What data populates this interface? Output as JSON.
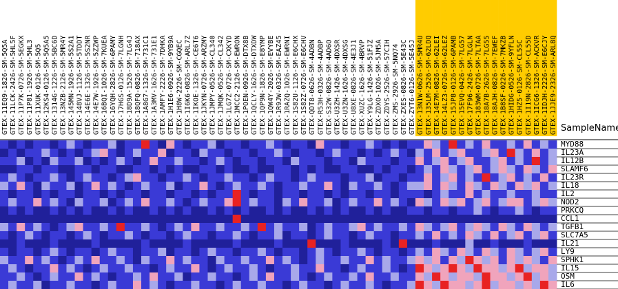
{
  "chart_data": {
    "type": "heatmap",
    "x_label": "SampleName",
    "columns": [
      "GTEX-11EQ9-1826-SM-5Q5A",
      "GTEX-11LCK-2426-SM-5HL5F",
      "GTEX-11P7K-0726-SM-5EGKX",
      "GTEX-11P81-1926-SM-5HL3",
      "GTEX-11XUK-0126-SM-5Q5",
      "GTEX-12KS4-0126-SM-5Q5A5",
      "GTEX-1314G-1226-SM-5BC6D",
      "GTEX-13NZB-2126-SM-5MR4Y",
      "GTEX-145MN-1926-SM-5S2A1",
      "GTEX-148VJ-1126-SM-5TDDT",
      "GTEX-14E6E-1326-SM-5S2NR",
      "GTEX-14E7W-1926-SM-5ZZWP",
      "GTEX-16BQI-1026-SM-7KUEA",
      "GTEX-16YQH-2826-SM-6PAMY",
      "GTEX-17HGS-0126-SM-7LGNH",
      "GTEX-18D9A-1526-SM-7LG4J",
      "GTEX-18QFQ-0826-SM-718AX",
      "GTEX-1A8G7-1326-SM-731C1",
      "GTEX-1A3MV-1626-SM-731E1",
      "GTEX-1AMFY-2226-SM-7DHKA",
      "GTEX-1H1E6-0926-SM-9YB9A",
      "GTEX-1H8W-2226-SM-CGQEC",
      "GTEX-1I6K6-0826-SM-ARL7Z",
      "GTEX-1IKOE-1326-SM-CE6T6",
      "GTEX-1JKYN-0726-SM-ARZMY",
      "GTEX-1JMPY-0526-SM-CL340",
      "GTEX-1JMQK-0526-SM-CL342",
      "GTEX-1LG7Z-0726-SM-CXKYD",
      "GTEX-1MCC2-2126-SM-EWRON",
      "GTEX-1POEN-0926-SM-DTX8B",
      "GTEX-1QCLY-1626-SM-DTXDW",
      "GTEX-1QP9N-1826-SM-E8YMP",
      "GTEX-1QW4Y-2026-SM-EVYBE",
      "GTEX-1R9JW-0326-SM-EAZ45",
      "GTEX-1RAZQ-1026-SM-EWRNI",
      "GTEX-1S82U-1126-SM-E6CHX",
      "GTEX-1S82Z-0726-SM-E6CHV",
      "GTEX-QDT8-0626-SM-4ADBN",
      "GTEX-R53H-0326-SM-4ADBP",
      "GTEX-S32W-0826-SM-4AD6O",
      "GTEX-U3ZH-1426-SM-4DXSR",
      "GTEX-U3ZN-1626-SM-4DXSG",
      "GTEX-U8XE-0826-SM-4E3J1",
      "GTEX-XUZC-1626-SM-4BRVP",
      "GTEX-Y9LG-1426-SM-51FJZ",
      "GTEX-ZDXO-1026-SM-5JM5A",
      "GTEX-ZDYS-2526-SM-57CIH",
      "GTEX-ZMS-2926-SM-5NQ74",
      "GTEX-ZXES-0826-SM-5E43C",
      "GTEX-ZYT6-0126-SM-5E45J",
      "GTEX-13N1W-0626-SM-5MR4U",
      "GTEX-135LM-2526-SM-62LDQ",
      "GTEX-14E7M-0826-SM-62LEI",
      "GTEX-14LZ3-0726-SM-62LEZ",
      "GTEX-15JP8-0126-SM-6PAMB",
      "GTEX-15EVQ-0426-SM-7LG57",
      "GTEX-17F96-2426-SM-7LGLN",
      "GTEX-183WM-0726-SM-7LTAA",
      "GTEX-18A7B-2626-SM-7LG55",
      "GTEX-18AJH-0826-SM-7EWEF",
      "GTEX-1B8SF-0226-SM-7MKZB",
      "GTEX-1HIDG-0526-SM-9YFLN",
      "GTEX-1HZ5-0126-SM-CL55C",
      "GTEX-1I19N-2826-SM-CL55D",
      "GTEX-1ICG6-1326-SM-ACKVR",
      "GTEX-1IDJH-2226-SM-E6CJY",
      "GTEX-1JJE9-2326-SM-ARL8Q"
    ],
    "highlight_columns": [
      50,
      51,
      52,
      53,
      54,
      55,
      56,
      57,
      58,
      59,
      60,
      61,
      62,
      63,
      64,
      65,
      66
    ],
    "highlight_color": "#ffcc00",
    "rows": [
      "MYD88",
      "IL23A",
      "IL12B",
      "SLAMF6",
      "IL23R",
      "IL18",
      "IL2",
      "NOD2",
      "PRKCQ",
      "CCL1",
      "TGFB1",
      "SLC7A5",
      "IL21",
      "LY9",
      "SPHK1",
      "IL15",
      "OSM",
      "IL6"
    ],
    "vlim": [
      -2,
      2
    ],
    "colormap": [
      "#20209a",
      "#3a3ad6",
      "#a8a8ea",
      "#f0a4bc",
      "#e82222"
    ],
    "values": [
      [
        -1,
        -2,
        -1,
        -2,
        -1,
        -1,
        -2,
        -1,
        0,
        -1,
        -2,
        -1,
        -1,
        0,
        -2,
        -1,
        -1,
        2,
        -1,
        -2,
        1,
        -1,
        -2,
        -1,
        -1,
        0,
        -2,
        -1,
        -1,
        -2,
        -1,
        -1,
        0,
        -1,
        -2,
        -1,
        -1,
        -2,
        1,
        -1,
        -1,
        -2,
        -1,
        -1,
        0,
        -1,
        -2,
        -1,
        -2,
        -1,
        -1,
        1,
        0,
        -1,
        2,
        -1,
        0,
        -1,
        1,
        -1,
        -1,
        0,
        -1,
        1,
        -1,
        0,
        -1
      ],
      [
        -2,
        -1,
        -2,
        -1,
        -1,
        0,
        -1,
        -2,
        -1,
        -2,
        -1,
        0,
        1,
        -1,
        -2,
        -1,
        0,
        -1,
        -1,
        1,
        -2,
        -1,
        -1,
        -2,
        0,
        -1,
        -1,
        -2,
        -1,
        -1,
        -2,
        -1,
        -1,
        0,
        -1,
        -2,
        -1,
        -1,
        -2,
        -1,
        0,
        -1,
        -1,
        -2,
        -1,
        -2,
        -1,
        0,
        -1,
        -2,
        0,
        -1,
        1,
        -1,
        0,
        1,
        -1,
        -1,
        0,
        1,
        -1,
        2,
        0,
        -1,
        1,
        -1,
        0
      ],
      [
        -1,
        -1,
        0,
        -2,
        -1,
        -2,
        0,
        -1,
        -1,
        0,
        -2,
        -1,
        -2,
        -1,
        0,
        -1,
        -2,
        -1,
        1,
        -1,
        -1,
        0,
        -1,
        -1,
        -2,
        -1,
        0,
        -1,
        -2,
        -1,
        -1,
        -2,
        -1,
        -1,
        -2,
        0,
        -1,
        -1,
        -1,
        -2,
        -1,
        -1,
        -2,
        0,
        -1,
        -1,
        -1,
        -2,
        -1,
        -1,
        1,
        -1,
        0,
        1,
        -1,
        0,
        1,
        -1,
        -1,
        0,
        1,
        -1,
        0,
        -1,
        2,
        -1,
        0
      ],
      [
        -2,
        -2,
        -1,
        -1,
        -2,
        -1,
        -1,
        -2,
        -2,
        -1,
        -1,
        -2,
        -1,
        -1,
        -2,
        -2,
        -1,
        -1,
        -2,
        -1,
        -2,
        -1,
        -2,
        -2,
        -1,
        -1,
        -2,
        -1,
        -2,
        -2,
        -1,
        -2,
        -2,
        -1,
        -1,
        -2,
        -1,
        -2,
        -1,
        -2,
        -2,
        -1,
        -1,
        -2,
        -2,
        -1,
        -2,
        -1,
        -1,
        -2,
        -1,
        0,
        -1,
        1,
        0,
        -1,
        0,
        1,
        -1,
        0,
        1,
        0,
        -1,
        1,
        0,
        -1,
        1
      ],
      [
        -1,
        0,
        -1,
        -2,
        -1,
        -1,
        0,
        -1,
        -2,
        -1,
        0,
        -1,
        -1,
        -2,
        -1,
        0,
        1,
        -1,
        -1,
        -2,
        -1,
        -1,
        0,
        -1,
        -2,
        -1,
        -1,
        0,
        -1,
        -1,
        -2,
        -1,
        0,
        -1,
        -1,
        -2,
        -1,
        0,
        -1,
        -1,
        -1,
        -2,
        -1,
        -1,
        0,
        -2,
        -1,
        -1,
        -2,
        -1,
        -1,
        1,
        -1,
        0,
        1,
        -1,
        0,
        -1,
        2,
        -1,
        0,
        1,
        -1,
        0,
        -1,
        1,
        -1
      ],
      [
        0,
        -1,
        1,
        -1,
        -2,
        0,
        -1,
        -1,
        0,
        -2,
        -1,
        1,
        -1,
        0,
        -1,
        -2,
        -1,
        0,
        -1,
        -1,
        0,
        -2,
        -1,
        -1,
        1,
        -1,
        -2,
        -1,
        0,
        -1,
        -1,
        0,
        -1,
        -2,
        -1,
        -1,
        0,
        -1,
        -1,
        1,
        -1,
        -2,
        0,
        -1,
        -1,
        0,
        -1,
        -2,
        -1,
        0,
        0,
        1,
        -1,
        1,
        0,
        -1,
        1,
        0,
        -1,
        1,
        0,
        -1,
        1,
        0,
        1,
        -1,
        0
      ],
      [
        -1,
        -2,
        -1,
        -1,
        -2,
        -1,
        -2,
        -1,
        -1,
        -2,
        -1,
        -1,
        -2,
        -1,
        -2,
        -1,
        -1,
        -2,
        -1,
        -1,
        -2,
        -1,
        -1,
        -2,
        -1,
        -2,
        -1,
        -1,
        2,
        -1,
        -2,
        -1,
        -1,
        -2,
        -1,
        -1,
        -2,
        -1,
        -1,
        -2,
        -1,
        -2,
        -1,
        -1,
        -2,
        -1,
        -1,
        -2,
        -1,
        -1,
        -1,
        -2,
        -1,
        0,
        -1,
        -1,
        1,
        -1,
        0,
        -1,
        -1,
        0,
        -1,
        -1,
        0,
        -1,
        -1
      ],
      [
        -1,
        0,
        -1,
        -1,
        1,
        -1,
        0,
        -1,
        -2,
        0,
        -1,
        -1,
        0,
        -2,
        -1,
        0,
        -1,
        1,
        -1,
        -1,
        0,
        -1,
        -2,
        -1,
        0,
        -1,
        -1,
        1,
        2,
        -1,
        0,
        -1,
        -1,
        -2,
        0,
        -1,
        1,
        -1,
        -1,
        0,
        -2,
        -1,
        0,
        -1,
        -1,
        1,
        -1,
        0,
        -1,
        -2,
        1,
        0,
        -1,
        1,
        0,
        1,
        -1,
        0,
        1,
        -1,
        0,
        1,
        1,
        -1,
        0,
        1,
        0
      ],
      [
        -2,
        -1,
        -2,
        -1,
        -2,
        -2,
        -1,
        -2,
        -1,
        -2,
        -1,
        -2,
        -2,
        -1,
        -2,
        -1,
        -2,
        -2,
        -1,
        -2,
        -1,
        -2,
        -1,
        -2,
        -2,
        -1,
        -2,
        -1,
        -2,
        -1,
        -2,
        -2,
        -1,
        -2,
        -1,
        -2,
        -2,
        -1,
        -2,
        -1,
        -2,
        -1,
        -2,
        -2,
        -1,
        -2,
        -1,
        -2,
        -2,
        -1,
        -1,
        -2,
        -1,
        -1,
        -2,
        -1,
        -1,
        0,
        -1,
        -2,
        -1,
        -1,
        0,
        -1,
        -2,
        -1,
        -1
      ],
      [
        -2,
        -2,
        -2,
        -2,
        -2,
        -2,
        -2,
        -2,
        -2,
        -2,
        -2,
        -2,
        -2,
        -2,
        -2,
        -2,
        -2,
        -2,
        -2,
        -2,
        -2,
        -2,
        -2,
        -2,
        -2,
        -2,
        -2,
        -2,
        2,
        -2,
        -2,
        -2,
        -2,
        -2,
        -2,
        -2,
        -2,
        -2,
        -2,
        -2,
        -2,
        -2,
        -2,
        -2,
        -2,
        -2,
        -2,
        -2,
        -2,
        -2,
        -2,
        -2,
        -2,
        -2,
        -2,
        -2,
        -2,
        -2,
        -2,
        -2,
        -2,
        -2,
        -2,
        -2,
        -2,
        -2,
        -2
      ],
      [
        0,
        -1,
        1,
        -1,
        0,
        -1,
        -2,
        -1,
        0,
        1,
        -1,
        -1,
        0,
        -1,
        2,
        -1,
        -1,
        0,
        -1,
        -2,
        -1,
        0,
        -1,
        1,
        -1,
        -1,
        0,
        -1,
        -1,
        0,
        -1,
        2,
        -1,
        0,
        -1,
        -1,
        0,
        -2,
        -1,
        0,
        -1,
        -1,
        0,
        1,
        -1,
        0,
        -1,
        -1,
        0,
        -1,
        1,
        0,
        -1,
        0,
        1,
        -1,
        0,
        1,
        0,
        -1,
        1,
        0,
        -1,
        1,
        0,
        -1,
        0
      ],
      [
        -1,
        -2,
        -1,
        0,
        -1,
        -2,
        -1,
        -1,
        -2,
        -1,
        0,
        -1,
        -2,
        -1,
        -1,
        0,
        -1,
        -2,
        -1,
        -1,
        -2,
        -1,
        0,
        -1,
        -1,
        -2,
        -1,
        -1,
        0,
        -1,
        -2,
        -1,
        -1,
        0,
        -2,
        -1,
        -1,
        -2,
        -1,
        0,
        -1,
        -1,
        -2,
        -1,
        0,
        -1,
        -1,
        -2,
        -1,
        -1,
        0,
        -1,
        1,
        -1,
        0,
        -1,
        1,
        0,
        -1,
        1,
        -1,
        0,
        1,
        -1,
        0,
        1,
        -1
      ],
      [
        -2,
        -2,
        -1,
        -2,
        -2,
        -2,
        -1,
        -2,
        -2,
        -2,
        -2,
        -1,
        -2,
        -2,
        -2,
        -2,
        -2,
        -1,
        -2,
        -2,
        -2,
        -2,
        -1,
        -2,
        -2,
        -2,
        -2,
        -2,
        -1,
        -2,
        -2,
        -2,
        -2,
        -1,
        -2,
        -2,
        -2,
        2,
        -2,
        -2,
        -2,
        -1,
        -2,
        -2,
        -2,
        -2,
        -1,
        -2,
        2,
        -2,
        -2,
        -2,
        -1,
        -2,
        -2,
        -2,
        0,
        -2,
        -2,
        -1,
        -2,
        -2,
        -2,
        -1,
        -2,
        -2,
        -2
      ],
      [
        -1,
        -2,
        -1,
        -1,
        -2,
        -1,
        0,
        -1,
        -2,
        -1,
        -1,
        -2,
        -1,
        0,
        -1,
        -1,
        -2,
        -1,
        -1,
        0,
        -2,
        -1,
        -1,
        -2,
        -1,
        0,
        -1,
        -1,
        -2,
        -1,
        -1,
        0,
        -1,
        -2,
        -1,
        -1,
        -2,
        -1,
        0,
        -1,
        -2,
        -1,
        -1,
        0,
        -1,
        -2,
        -1,
        -1,
        -2,
        -1,
        0,
        -1,
        1,
        0,
        -1,
        1,
        0,
        -1,
        1,
        0,
        -1,
        1,
        0,
        -1,
        0,
        1,
        -1
      ],
      [
        0,
        -1,
        -1,
        1,
        -1,
        0,
        -1,
        -2,
        -1,
        0,
        -1,
        1,
        -1,
        -1,
        0,
        -1,
        -2,
        0,
        -1,
        -1,
        1,
        -1,
        0,
        -1,
        -1,
        -2,
        0,
        -1,
        -1,
        0,
        -1,
        -1,
        1,
        -1,
        0,
        -1,
        -2,
        -1,
        0,
        -1,
        -1,
        0,
        -1,
        -1,
        1,
        -1,
        0,
        -1,
        -1,
        0,
        1,
        0,
        1,
        -1,
        1,
        0,
        2,
        1,
        0,
        1,
        -1,
        1,
        0,
        1,
        0,
        -1,
        1
      ],
      [
        -1,
        0,
        -1,
        -2,
        -1,
        -1,
        1,
        -1,
        0,
        -1,
        -2,
        -1,
        0,
        -1,
        -1,
        0,
        -1,
        -1,
        -2,
        -1,
        0,
        -1,
        -1,
        1,
        -1,
        -2,
        -1,
        0,
        -1,
        -1,
        0,
        -1,
        -2,
        -1,
        -1,
        0,
        -1,
        -1,
        1,
        -1,
        -1,
        -2,
        -1,
        0,
        -1,
        -1,
        0,
        -1,
        -2,
        -1,
        2,
        1,
        0,
        1,
        2,
        1,
        0,
        2,
        1,
        1,
        0,
        1,
        2,
        0,
        1,
        1,
        0
      ],
      [
        -1,
        -1,
        0,
        -1,
        -2,
        -1,
        0,
        -1,
        -1,
        1,
        -1,
        0,
        -1,
        -2,
        -1,
        -1,
        0,
        -1,
        1,
        -1,
        -1,
        0,
        -2,
        -1,
        -1,
        0,
        -1,
        -1,
        -2,
        -1,
        0,
        -1,
        1,
        -1,
        -1,
        0,
        -1,
        -2,
        -1,
        0,
        -1,
        -1,
        0,
        -1,
        1,
        -1,
        -1,
        0,
        -1,
        -1,
        1,
        0,
        2,
        1,
        0,
        1,
        1,
        0,
        2,
        1,
        1,
        0,
        1,
        2,
        0,
        1,
        0
      ],
      [
        -1,
        0,
        -1,
        -1,
        0,
        -2,
        -1,
        -1,
        0,
        -1,
        -1,
        -2,
        -1,
        0,
        -1,
        -1,
        1,
        -1,
        0,
        -1,
        -2,
        -1,
        -1,
        0,
        -1,
        -1,
        -2,
        -1,
        0,
        -1,
        -1,
        0,
        -1,
        -1,
        -2,
        -1,
        0,
        -1,
        -1,
        -2,
        -1,
        0,
        -1,
        -1,
        0,
        -1,
        -2,
        -1,
        -1,
        0,
        2,
        1,
        0,
        2,
        1,
        1,
        0,
        1,
        2,
        0,
        1,
        1,
        0,
        1,
        0,
        2,
        1
      ]
    ]
  }
}
